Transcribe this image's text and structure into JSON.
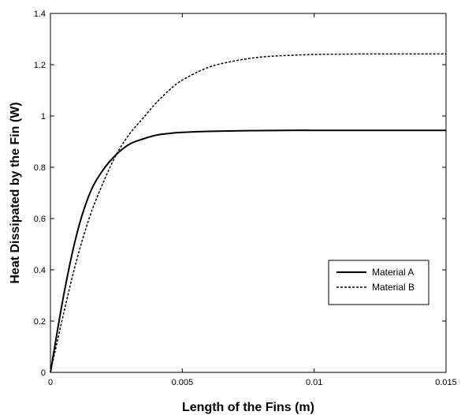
{
  "chart_data": {
    "type": "line",
    "title": "",
    "xlabel": "Length of the Fins (m)",
    "ylabel": "Heat Dissipated by the Fin (W)",
    "xlim": [
      0,
      0.015
    ],
    "ylim": [
      0,
      1.4
    ],
    "xticks": [
      0,
      0.005,
      0.01,
      0.015
    ],
    "xtick_labels": [
      "0",
      "0.005",
      "0.01",
      "0.015"
    ],
    "yticks": [
      0,
      0.2,
      0.4,
      0.6,
      0.8,
      1,
      1.2,
      1.4
    ],
    "ytick_labels": [
      "0",
      "0.2",
      "0.4",
      "0.6",
      "0.8",
      "1",
      "1.2",
      "1.4"
    ],
    "grid": false,
    "legend_position": "lower-right",
    "series": [
      {
        "name": "Material A",
        "line_style": "solid",
        "color": "#000000",
        "x": [
          0,
          0.0005,
          0.001,
          0.0015,
          0.002,
          0.0025,
          0.003,
          0.0035,
          0.004,
          0.0045,
          0.005,
          0.006,
          0.007,
          0.008,
          0.009,
          0.01,
          0.011,
          0.012,
          0.013,
          0.014,
          0.015
        ],
        "y": [
          0,
          0.3,
          0.54,
          0.7,
          0.79,
          0.85,
          0.89,
          0.91,
          0.925,
          0.932,
          0.936,
          0.94,
          0.942,
          0.943,
          0.944,
          0.944,
          0.944,
          0.944,
          0.944,
          0.944,
          0.944
        ]
      },
      {
        "name": "Material B",
        "line_style": "dashed",
        "color": "#000000",
        "x": [
          0,
          0.0005,
          0.001,
          0.0015,
          0.002,
          0.0025,
          0.003,
          0.0035,
          0.004,
          0.0045,
          0.005,
          0.006,
          0.007,
          0.008,
          0.009,
          0.01,
          0.011,
          0.012,
          0.013,
          0.014,
          0.015
        ],
        "y": [
          0,
          0.23,
          0.44,
          0.61,
          0.74,
          0.85,
          0.93,
          0.99,
          1.05,
          1.1,
          1.14,
          1.19,
          1.215,
          1.23,
          1.236,
          1.24,
          1.241,
          1.242,
          1.242,
          1.242,
          1.242
        ]
      }
    ]
  }
}
